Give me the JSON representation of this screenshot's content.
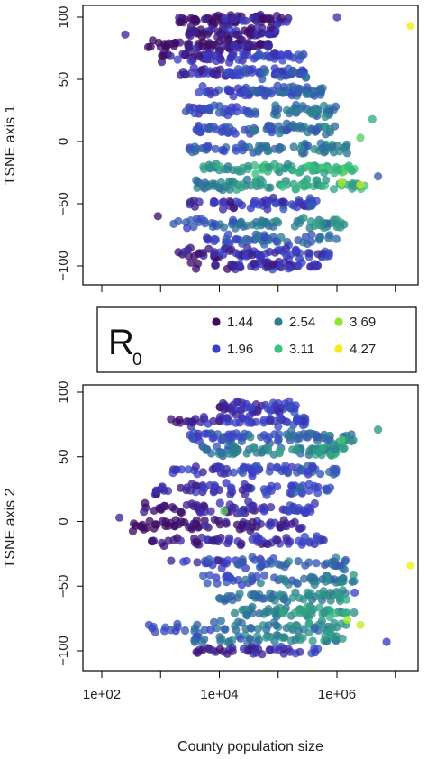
{
  "chart_data": [
    {
      "type": "scatter",
      "ylabel": "TSNE axis 1",
      "xlabel": "",
      "xscale": "log10",
      "xlim": [
        50,
        30000000
      ],
      "ylim": [
        -110,
        105
      ],
      "x_ticks": [
        100,
        10000,
        1000000
      ],
      "x_minor_ticks": [
        1000,
        100000,
        10000000
      ],
      "x_tick_labels": [],
      "y_ticks": [
        100,
        50,
        0,
        -50,
        -100
      ],
      "y_tick_labels": [
        "100",
        "50",
        "0",
        "−50",
        "−100"
      ],
      "grid": false,
      "color_by": "R0",
      "clusters": [
        {
          "y": 98,
          "x": [
            2000,
            150000
          ],
          "n": 70,
          "r0": 1.6
        },
        {
          "y": 88,
          "x": [
            3000,
            100000
          ],
          "n": 60,
          "r0": 1.7
        },
        {
          "y": 78,
          "x": [
            600,
            80000
          ],
          "n": 70,
          "r0": 1.6
        },
        {
          "y": 68,
          "x": [
            1000,
            300000
          ],
          "n": 70,
          "r0": 1.9
        },
        {
          "y": 55,
          "x": [
            2000,
            300000
          ],
          "n": 80,
          "r0": 2.0
        },
        {
          "y": 40,
          "x": [
            3000,
            600000
          ],
          "n": 80,
          "r0": 2.1
        },
        {
          "y": 25,
          "x": [
            2000,
            1000000
          ],
          "n": 70,
          "r0": 2.2
        },
        {
          "y": 10,
          "x": [
            3000,
            1000000
          ],
          "n": 70,
          "r0": 2.2
        },
        {
          "y": -5,
          "x": [
            3000,
            1500000
          ],
          "n": 70,
          "r0": 2.3
        },
        {
          "y": -22,
          "x": [
            5000,
            2000000
          ],
          "n": 80,
          "r0": 2.8
        },
        {
          "y": -35,
          "x": [
            4000,
            3000000
          ],
          "n": 80,
          "r0": 2.7
        },
        {
          "y": -50,
          "x": [
            3000,
            500000
          ],
          "n": 60,
          "r0": 1.9
        },
        {
          "y": -66,
          "x": [
            1500,
            1500000
          ],
          "n": 70,
          "r0": 2.4
        },
        {
          "y": -78,
          "x": [
            5000,
            1000000
          ],
          "n": 50,
          "r0": 2.2
        },
        {
          "y": -90,
          "x": [
            1500,
            800000
          ],
          "n": 70,
          "r0": 1.8
        },
        {
          "y": -100,
          "x": [
            3000,
            500000
          ],
          "n": 50,
          "r0": 1.7
        }
      ],
      "extra_points": [
        {
          "x": 250,
          "y": 86,
          "r0": 1.7
        },
        {
          "x": 1000000,
          "y": 100,
          "r0": 1.8
        },
        {
          "x": 18000000,
          "y": 93,
          "r0": 4.27
        },
        {
          "x": 5000000,
          "y": -28,
          "r0": 2.2
        },
        {
          "x": 2500000,
          "y": -35,
          "r0": 4.1
        },
        {
          "x": 1200000,
          "y": -33,
          "r0": 3.9
        },
        {
          "x": 900,
          "y": -60,
          "r0": 1.5
        },
        {
          "x": 4000000,
          "y": 18,
          "r0": 2.9
        },
        {
          "x": 2500000,
          "y": 3,
          "r0": 3.3
        }
      ]
    },
    {
      "type": "scatter",
      "ylabel": "TSNE axis 2",
      "xlabel": "County population size",
      "xscale": "log10",
      "xlim": [
        50,
        30000000
      ],
      "ylim": [
        -108,
        100
      ],
      "x_ticks": [
        100,
        10000,
        1000000
      ],
      "x_minor_ticks": [
        1000,
        100000,
        10000000
      ],
      "x_tick_labels": [
        "1e+02",
        "1e+04",
        "1e+06"
      ],
      "y_ticks": [
        100,
        50,
        0,
        -50,
        -100
      ],
      "y_tick_labels": [
        "100",
        "50",
        "0",
        "−50",
        "−100"
      ],
      "grid": false,
      "color_by": "R0",
      "clusters": [
        {
          "y": 88,
          "x": [
            10000,
            200000
          ],
          "n": 50,
          "r0": 1.8
        },
        {
          "y": 78,
          "x": [
            1500,
            300000
          ],
          "n": 60,
          "r0": 1.9
        },
        {
          "y": 65,
          "x": [
            3000,
            2000000
          ],
          "n": 80,
          "r0": 2.2
        },
        {
          "y": 55,
          "x": [
            5000,
            1500000
          ],
          "n": 80,
          "r0": 2.5
        },
        {
          "y": 40,
          "x": [
            1500,
            1000000
          ],
          "n": 70,
          "r0": 2.0
        },
        {
          "y": 25,
          "x": [
            800,
            800000
          ],
          "n": 70,
          "r0": 1.9
        },
        {
          "y": 10,
          "x": [
            500,
            500000
          ],
          "n": 70,
          "r0": 1.8
        },
        {
          "y": -3,
          "x": [
            300,
            300000
          ],
          "n": 70,
          "r0": 1.7
        },
        {
          "y": -15,
          "x": [
            500,
            600000
          ],
          "n": 60,
          "r0": 1.8
        },
        {
          "y": -32,
          "x": [
            1000,
            1500000
          ],
          "n": 60,
          "r0": 2.1
        },
        {
          "y": -45,
          "x": [
            5000,
            2000000
          ],
          "n": 60,
          "r0": 2.2
        },
        {
          "y": -58,
          "x": [
            10000,
            1500000
          ],
          "n": 60,
          "r0": 2.4
        },
        {
          "y": -70,
          "x": [
            15000,
            2000000
          ],
          "n": 60,
          "r0": 2.6
        },
        {
          "y": -82,
          "x": [
            500,
            2500000
          ],
          "n": 60,
          "r0": 2.4
        },
        {
          "y": -90,
          "x": [
            3000,
            1500000
          ],
          "n": 50,
          "r0": 2.5
        },
        {
          "y": -100,
          "x": [
            3000,
            500000
          ],
          "n": 40,
          "r0": 1.8
        }
      ],
      "extra_points": [
        {
          "x": 200,
          "y": 3,
          "r0": 1.7
        },
        {
          "x": 18000000,
          "y": -34,
          "r0": 4.27
        },
        {
          "x": 2500000,
          "y": -80,
          "r0": 4.0
        },
        {
          "x": 1500000,
          "y": -76,
          "r0": 3.8
        },
        {
          "x": 5000000,
          "y": 71,
          "r0": 2.7
        },
        {
          "x": 1200000,
          "y": 63,
          "r0": 3.2
        },
        {
          "x": 7000000,
          "y": -93,
          "r0": 1.9
        },
        {
          "x": 12000,
          "y": 8,
          "r0": 3.3
        },
        {
          "x": 2000000,
          "y": -55,
          "r0": 2.0
        }
      ]
    }
  ],
  "legend": {
    "title": "R",
    "title_subscript": "0",
    "entries": [
      {
        "label": "1.44",
        "color": "#3f0b63"
      },
      {
        "label": "1.96",
        "color": "#3b3fcc"
      },
      {
        "label": "2.54",
        "color": "#2b7f8e"
      },
      {
        "label": "3.11",
        "color": "#38c47b"
      },
      {
        "label": "3.69",
        "color": "#8ee52c"
      },
      {
        "label": "4.27",
        "color": "#f3ec1e"
      }
    ]
  },
  "colors": {
    "scale": [
      "#3f0b63",
      "#3b3fcc",
      "#2b7f8e",
      "#38c47b",
      "#8ee52c",
      "#f3ec1e"
    ],
    "scale_breaks": [
      1.44,
      1.96,
      2.54,
      3.11,
      3.69,
      4.27
    ]
  }
}
